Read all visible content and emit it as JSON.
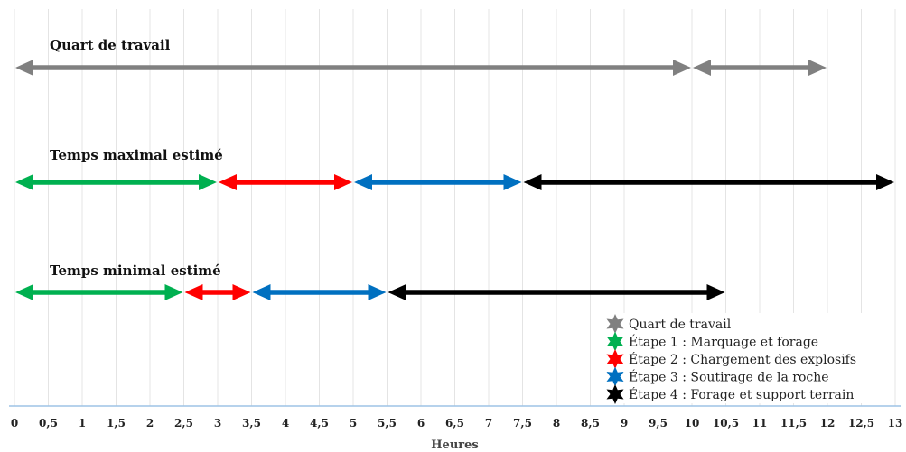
{
  "chart_data": {
    "type": "timeline",
    "xlabel": "Heures",
    "xlim": [
      0,
      13
    ],
    "ticks": [
      "0",
      "0,5",
      "1",
      "1,5",
      "2",
      "2,5",
      "3",
      "3,5",
      "4",
      "4,5",
      "5",
      "5,5",
      "6",
      "6,5",
      "7",
      "7,5",
      "8",
      "8,5",
      "9",
      "9,5",
      "10",
      "10,5",
      "11",
      "11,5",
      "12",
      "12,5",
      "13"
    ],
    "grid": "vertical",
    "legend_position": "bottom-right",
    "legend": [
      {
        "name": "Quart de travail",
        "color": "#808080"
      },
      {
        "name": "Étape 1 : Marquage et forage",
        "color": "#00b050"
      },
      {
        "name": "Étape 2 : Chargement des explosifs",
        "color": "#ff0000"
      },
      {
        "name": "Étape 3 : Soutirage de la roche",
        "color": "#0070c0"
      },
      {
        "name": "Étape 4 : Forage et support terrain",
        "color": "#000000"
      }
    ],
    "rows": [
      {
        "title": "Quart de travail",
        "segments": [
          {
            "start": 0,
            "end": 10,
            "color": "#808080"
          },
          {
            "start": 10,
            "end": 12,
            "color": "#808080"
          }
        ]
      },
      {
        "title": "Temps maximal estimé",
        "segments": [
          {
            "start": 0,
            "end": 3,
            "color": "#00b050"
          },
          {
            "start": 3,
            "end": 5,
            "color": "#ff0000"
          },
          {
            "start": 5,
            "end": 7.5,
            "color": "#0070c0"
          },
          {
            "start": 7.5,
            "end": 13,
            "color": "#000000"
          }
        ]
      },
      {
        "title": "Temps minimal estimé",
        "segments": [
          {
            "start": 0,
            "end": 2.5,
            "color": "#00b050"
          },
          {
            "start": 2.5,
            "end": 3.5,
            "color": "#ff0000"
          },
          {
            "start": 3.5,
            "end": 5.5,
            "color": "#0070c0"
          },
          {
            "start": 5.5,
            "end": 10.5,
            "color": "#000000"
          }
        ]
      }
    ]
  }
}
